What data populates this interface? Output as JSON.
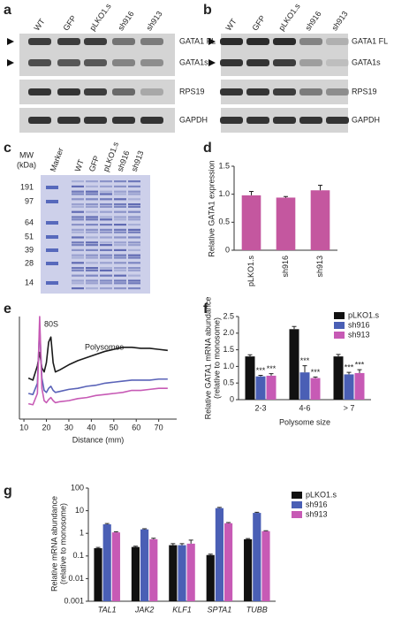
{
  "panel_labels": [
    "a",
    "b",
    "c",
    "d",
    "e",
    "f",
    "g"
  ],
  "blot_a": {
    "lanes": [
      "WT",
      "GFP",
      "pLKO1.s",
      "sh916",
      "sh913"
    ],
    "bands": [
      "GATA1 FL",
      "GATA1s",
      "RPS19",
      "GAPDH"
    ]
  },
  "blot_b": {
    "lanes": [
      "WT",
      "GFP",
      "pLKO1.s",
      "sh916",
      "sh913"
    ],
    "bands": [
      "GATA1 FL",
      "GATA1s",
      "RPS19",
      "GAPDH"
    ]
  },
  "gel_c": {
    "mw_title": [
      "MW",
      "(kDa)"
    ],
    "marker": "Marker",
    "lanes": [
      "WT",
      "GFP",
      "pLKO1.s",
      "sh916",
      "sh913"
    ],
    "mw": [
      191,
      97,
      64,
      51,
      39,
      28,
      14
    ]
  },
  "chart_data": [
    {
      "type": "bar",
      "ylabel": [
        "Relative  GATA1 expression"
      ],
      "categories": [
        "pLKO1.s",
        "sh916",
        "sh913"
      ],
      "series": [
        {
          "color": "#c4579f",
          "values": [
            0.98,
            0.94,
            1.07
          ],
          "errors": [
            0.07,
            0.02,
            0.09
          ]
        }
      ],
      "ylim": [
        0,
        1.5
      ],
      "yticks": [
        0,
        {
          "value": 0.5,
          "label": "0.5"
        },
        {
          "value": 1,
          "label": "1.0"
        },
        {
          "value": 1.5,
          "label": "1.5"
        }
      ]
    },
    {
      "type": "line",
      "xlabel": "Distance (mm)",
      "annotations": [
        "80S",
        "Polysomes"
      ],
      "x": [
        12,
        14,
        16,
        17,
        18,
        19,
        20,
        21,
        22,
        23,
        24,
        26,
        30,
        34,
        38,
        42,
        46,
        50,
        54,
        58,
        62,
        66,
        70,
        74
      ],
      "series": [
        {
          "color": "#1a1a1a",
          "values": [
            4.0,
            3.8,
            5.2,
            6.5,
            5.0,
            4.6,
            5.5,
            7.5,
            8.0,
            5.5,
            4.6,
            4.8,
            5.3,
            5.7,
            6.0,
            6.3,
            6.6,
            6.8,
            7.0,
            7.0,
            6.9,
            6.9,
            6.8,
            6.7
          ]
        },
        {
          "color": "#5a63b8",
          "values": [
            2.5,
            2.4,
            3.5,
            9.0,
            4.0,
            2.8,
            2.6,
            3.0,
            3.2,
            2.8,
            2.6,
            2.7,
            2.9,
            3.0,
            3.2,
            3.3,
            3.5,
            3.6,
            3.7,
            3.8,
            3.8,
            3.8,
            3.9,
            3.9
          ]
        },
        {
          "color": "#c75ab5",
          "values": [
            1.5,
            1.4,
            2.5,
            10.0,
            3.0,
            1.8,
            1.6,
            1.9,
            2.1,
            1.8,
            1.6,
            1.7,
            1.8,
            2.0,
            2.1,
            2.3,
            2.4,
            2.5,
            2.6,
            2.8,
            2.8,
            2.9,
            3.0,
            3.0
          ]
        }
      ],
      "xlim": [
        8,
        78
      ],
      "xticks": [
        10,
        20,
        30,
        40,
        50,
        60,
        70
      ]
    },
    {
      "type": "bar",
      "ylabel": [
        "Relative GATA1 mRNA abundance",
        "(relative to monosome)"
      ],
      "xlabel": "Polysome size",
      "categories": [
        "2-3",
        "4-6",
        "> 7"
      ],
      "series": [
        {
          "name": "pLKO1.s",
          "color": "#111111",
          "values": [
            1.3,
            2.12,
            1.3
          ],
          "errors": [
            0.05,
            0.08,
            0.06
          ]
        },
        {
          "name": "sh916",
          "color": "#4a5fb5",
          "values": [
            0.7,
            0.82,
            0.76
          ],
          "errors": [
            0.03,
            0.2,
            0.06
          ],
          "significance": [
            "***",
            "***",
            "***"
          ]
        },
        {
          "name": "sh913",
          "color": "#c75ab5",
          "values": [
            0.72,
            0.65,
            0.8
          ],
          "errors": [
            0.06,
            0.03,
            0.1
          ],
          "significance": [
            "***",
            "***",
            "***"
          ]
        }
      ],
      "ylim": [
        0,
        2.5
      ],
      "yticks": [
        0,
        {
          "value": 0.5,
          "label": "0.5"
        },
        {
          "value": 1,
          "label": "1.0"
        },
        {
          "value": 1.5,
          "label": "1.5"
        },
        {
          "value": 2,
          "label": "2.0"
        },
        {
          "value": 2.5,
          "label": "2.5"
        }
      ]
    },
    {
      "type": "bar",
      "ylabel": [
        "Relative mRNA abundance",
        "(relative to monosome)"
      ],
      "log": true,
      "categories": [
        "TAL1",
        "JAK2",
        "KLF1",
        "SPTA1",
        "TUBB"
      ],
      "series": [
        {
          "name": "pLKO1.s",
          "color": "#111111",
          "values": [
            0.22,
            0.25,
            0.3,
            0.11,
            0.55
          ],
          "errors": [
            0.02,
            0.02,
            0.05,
            0.01,
            0.04
          ]
        },
        {
          "name": "sh916",
          "color": "#4a5fb5",
          "values": [
            2.5,
            1.5,
            0.3,
            13,
            8
          ],
          "errors": [
            0.2,
            0.1,
            0.05,
            1,
            0.5
          ]
        },
        {
          "name": "sh913",
          "color": "#c75ab5",
          "values": [
            1.1,
            0.55,
            0.35,
            2.8,
            1.25
          ],
          "errors": [
            0.08,
            0.06,
            0.15,
            0.2,
            0.05
          ]
        }
      ],
      "ylim": [
        0.001,
        100
      ],
      "yticks": [
        0.001,
        0.01,
        0.1,
        1,
        10,
        100
      ]
    }
  ]
}
